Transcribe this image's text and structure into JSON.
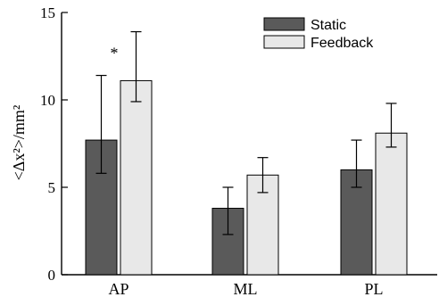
{
  "chart_data": {
    "type": "bar",
    "categories": [
      "AP",
      "ML",
      "PL"
    ],
    "series": [
      {
        "name": "Static",
        "values": [
          7.7,
          3.8,
          6.0
        ],
        "error_low": [
          5.8,
          2.3,
          5.0
        ],
        "error_high": [
          11.4,
          5.0,
          7.7
        ],
        "color": "#5a5a5a"
      },
      {
        "name": "Feedback",
        "values": [
          11.1,
          5.7,
          8.1
        ],
        "error_low": [
          9.9,
          4.7,
          7.3
        ],
        "error_high": [
          13.9,
          6.7,
          9.8
        ],
        "color": "#e8e8e8"
      }
    ],
    "ylabel": "<Δx²>/mm²",
    "ylim": [
      0,
      15
    ],
    "yticks": [
      0,
      5,
      10,
      15
    ],
    "legend": "top-right",
    "grid": false,
    "annotations": [
      {
        "text": "*",
        "category": "AP",
        "series": "Feedback"
      }
    ]
  }
}
